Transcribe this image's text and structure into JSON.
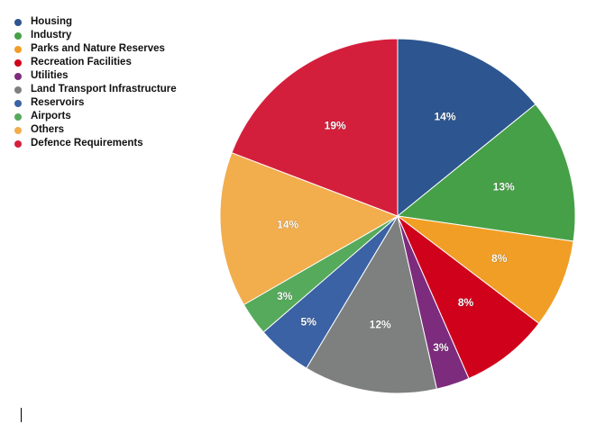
{
  "chart_data": {
    "type": "pie",
    "title": "",
    "start_angle_deg": 0,
    "direction": "clockwise",
    "slices": [
      {
        "label": "Housing",
        "value": 14,
        "display": "14%",
        "color": "#2d5690"
      },
      {
        "label": "Industry",
        "value": 13,
        "display": "13%",
        "color": "#46a047"
      },
      {
        "label": "Parks and Nature Reserves",
        "value": 8,
        "display": "8%",
        "color": "#f19e26"
      },
      {
        "label": "Recreation Facilities",
        "value": 8,
        "display": "8%",
        "color": "#d0021b"
      },
      {
        "label": "Utilities",
        "value": 3,
        "display": "3%",
        "color": "#7d2b7c"
      },
      {
        "label": "Land Transport Infrastructure",
        "value": 12,
        "display": "12%",
        "color": "#7e807f"
      },
      {
        "label": "Reservoirs",
        "value": 5,
        "display": "5%",
        "color": "#3a62a4"
      },
      {
        "label": "Airports",
        "value": 3,
        "display": "3%",
        "color": "#56aa5b"
      },
      {
        "label": "Others",
        "value": 14,
        "display": "14%",
        "color": "#f2ad4d"
      },
      {
        "label": "Defence Requirements",
        "value": 19,
        "display": "19%",
        "color": "#d41f3c"
      }
    ],
    "legend_position": "top-left"
  }
}
